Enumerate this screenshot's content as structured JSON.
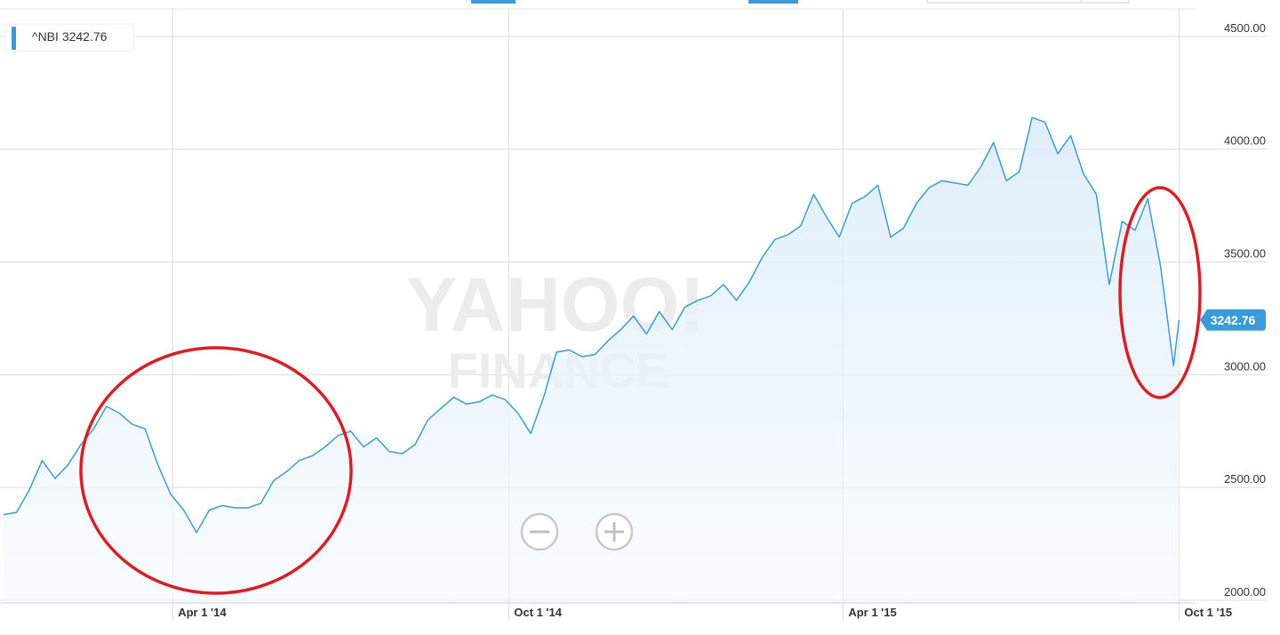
{
  "chart_data": {
    "type": "line",
    "x": [
      "2013-12-30",
      "2014-01-06",
      "2014-01-13",
      "2014-01-20",
      "2014-01-27",
      "2014-02-03",
      "2014-02-10",
      "2014-02-17",
      "2014-02-24",
      "2014-03-03",
      "2014-03-10",
      "2014-03-17",
      "2014-03-24",
      "2014-03-31",
      "2014-04-07",
      "2014-04-14",
      "2014-04-21",
      "2014-04-28",
      "2014-05-05",
      "2014-05-12",
      "2014-05-19",
      "2014-05-26",
      "2014-06-02",
      "2014-06-09",
      "2014-06-16",
      "2014-06-23",
      "2014-06-30",
      "2014-07-07",
      "2014-07-14",
      "2014-07-21",
      "2014-07-28",
      "2014-08-04",
      "2014-08-11",
      "2014-08-18",
      "2014-08-25",
      "2014-09-01",
      "2014-09-08",
      "2014-09-15",
      "2014-09-22",
      "2014-09-29",
      "2014-10-06",
      "2014-10-13",
      "2014-10-20",
      "2014-10-27",
      "2014-11-03",
      "2014-11-10",
      "2014-11-17",
      "2014-11-24",
      "2014-12-01",
      "2014-12-08",
      "2014-12-15",
      "2014-12-22",
      "2014-12-29",
      "2015-01-05",
      "2015-01-12",
      "2015-01-19",
      "2015-01-26",
      "2015-02-02",
      "2015-02-09",
      "2015-02-16",
      "2015-02-23",
      "2015-03-02",
      "2015-03-09",
      "2015-03-16",
      "2015-03-23",
      "2015-03-30",
      "2015-04-06",
      "2015-04-13",
      "2015-04-20",
      "2015-04-27",
      "2015-05-04",
      "2015-05-11",
      "2015-05-18",
      "2015-05-25",
      "2015-06-01",
      "2015-06-08",
      "2015-06-15",
      "2015-06-22",
      "2015-06-29",
      "2015-07-06",
      "2015-07-13",
      "2015-07-20",
      "2015-07-27",
      "2015-08-03",
      "2015-08-10",
      "2015-08-17",
      "2015-08-24",
      "2015-08-31",
      "2015-09-07",
      "2015-09-14",
      "2015-09-21",
      "2015-09-28",
      "2015-10-01"
    ],
    "series": [
      {
        "name": "^NBI",
        "color": "#3b9bd8",
        "values": [
          2380,
          2390,
          2490,
          2620,
          2540,
          2600,
          2690,
          2760,
          2860,
          2830,
          2780,
          2760,
          2600,
          2470,
          2400,
          2300,
          2400,
          2420,
          2410,
          2410,
          2430,
          2530,
          2570,
          2620,
          2640,
          2680,
          2730,
          2750,
          2680,
          2720,
          2660,
          2650,
          2690,
          2800,
          2850,
          2900,
          2870,
          2880,
          2910,
          2890,
          2830,
          2740,
          2900,
          3100,
          3110,
          3080,
          3090,
          3150,
          3200,
          3260,
          3180,
          3280,
          3200,
          3300,
          3330,
          3350,
          3400,
          3330,
          3410,
          3520,
          3600,
          3620,
          3660,
          3800,
          3700,
          3610,
          3760,
          3790,
          3840,
          3610,
          3650,
          3760,
          3830,
          3860,
          3850,
          3840,
          3920,
          4030,
          3860,
          3900,
          4140,
          4120,
          3980,
          4060,
          3890,
          3800,
          3400,
          3680,
          3640,
          3780,
          3480,
          3040,
          3242.76
        ]
      }
    ],
    "xlim": [
      "2013-12-28",
      "2015-10-10"
    ],
    "xticks": [
      {
        "value": "2014-04-01",
        "label": "Apr 1 '14"
      },
      {
        "value": "2014-10-01",
        "label": "Oct 1 '14"
      },
      {
        "value": "2015-04-01",
        "label": "Apr 1 '15"
      },
      {
        "value": "2015-10-01",
        "label": "Oct 1 '15"
      }
    ],
    "ylim": [
      1988,
      4622
    ],
    "yticks": [
      {
        "value": 2000,
        "label": "2000.00"
      },
      {
        "value": 2500,
        "label": "2500.00"
      },
      {
        "value": 3000,
        "label": "3000.00"
      },
      {
        "value": 3500,
        "label": "3500.00"
      },
      {
        "value": 4000,
        "label": "4000.00"
      },
      {
        "value": 4500,
        "label": "4500.00"
      }
    ],
    "grid": true,
    "watermark": [
      "YAHOO!",
      "FINANCE"
    ]
  }
}
